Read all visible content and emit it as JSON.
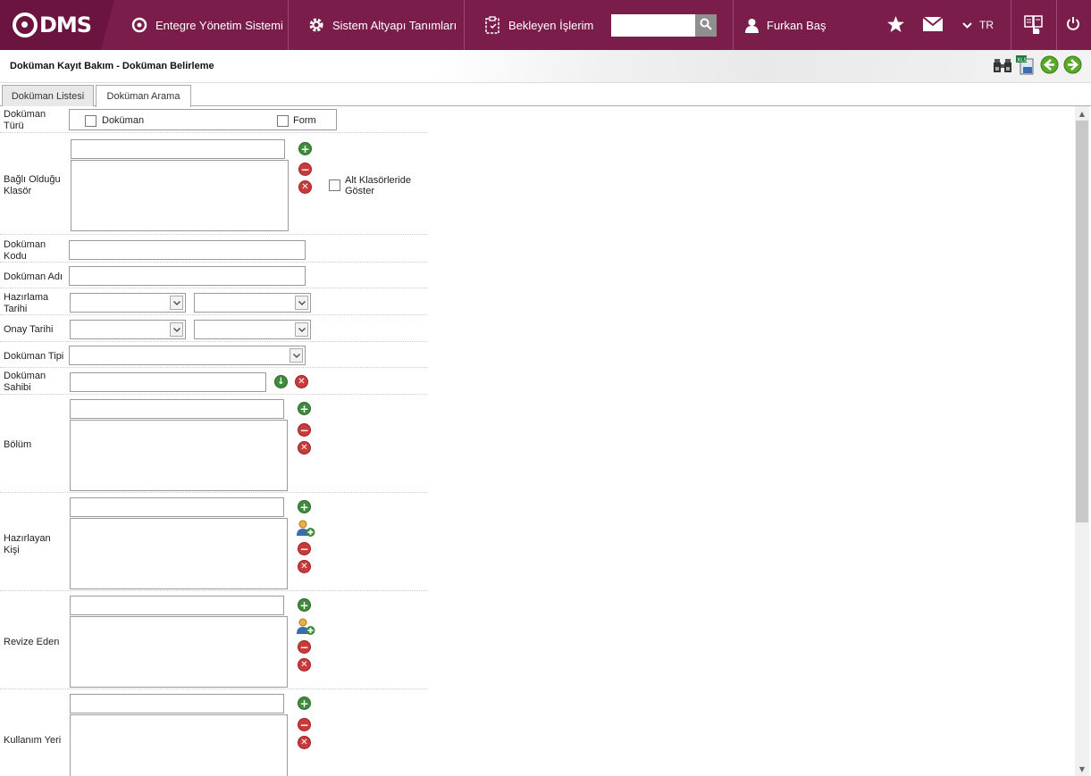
{
  "app": {
    "brand": "DMS"
  },
  "nav": {
    "items": [
      {
        "label": "Entegre Yönetim Sistemi",
        "icon": "qdms-circle-icon"
      },
      {
        "label": "Sistem Altyapı Tanımları",
        "icon": "gear-icon"
      },
      {
        "label": "Bekleyen İşlerim",
        "icon": "clipboard-icon"
      }
    ],
    "search": {
      "value": "",
      "placeholder": ""
    },
    "user": "Furkan Baş",
    "language": "TR"
  },
  "page": {
    "title": "Doküman Kayıt Bakım - Doküman Belirleme"
  },
  "tabs": [
    {
      "label": "Doküman Listesi"
    },
    {
      "label": "Doküman Arama"
    }
  ],
  "form": {
    "dokuman_turu": {
      "label": "Doküman Türü",
      "opt1": "Doküman",
      "opt2": "Form"
    },
    "bagli_klasor": {
      "label": "Bağlı Olduğu Klasör",
      "alt": "Alt Klasörleride Göster"
    },
    "dokuman_kodu": {
      "label": "Doküman Kodu",
      "value": ""
    },
    "dokuman_adi": {
      "label": "Doküman Adı",
      "value": ""
    },
    "hazirlama_tarihi": {
      "label": "Hazırlama Tarihi"
    },
    "onay_tarihi": {
      "label": "Onay Tarihi"
    },
    "dokuman_tipi": {
      "label": "Doküman Tipi"
    },
    "dokuman_sahibi": {
      "label": "Doküman Sahibi",
      "value": ""
    },
    "bolum": {
      "label": "Bölüm"
    },
    "hazirlayan": {
      "label": "Hazırlayan Kişi"
    },
    "revize": {
      "label": "Revize Eden"
    },
    "kullanim": {
      "label": "Kullanım Yeri"
    }
  },
  "colors": {
    "topbar": "#7a1d4a",
    "add": "#3f8b3c",
    "remove": "#c93a3a"
  }
}
